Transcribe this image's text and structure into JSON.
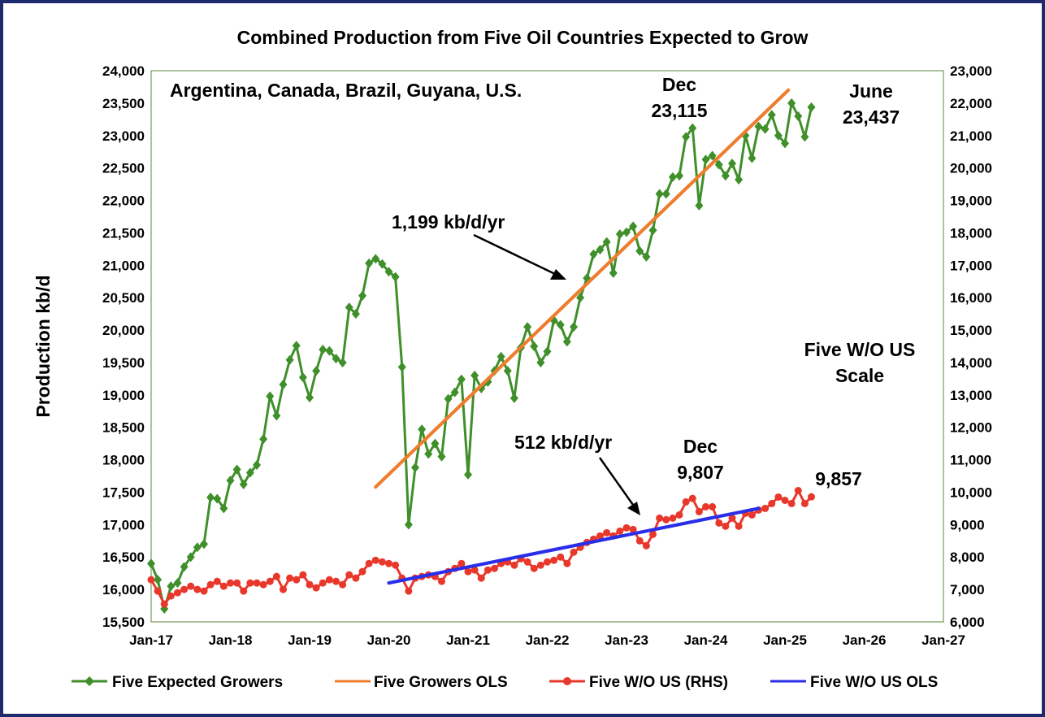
{
  "chart_data": {
    "type": "line",
    "title": "Combined Production from Five Oil Countries Expected to Grow",
    "ylabel": "Production kb/d",
    "ylim": [
      15500,
      24000
    ],
    "y2lim": [
      6000,
      23000
    ],
    "yticks": [
      "24,000",
      "23,500",
      "23,000",
      "22,500",
      "22,000",
      "21,500",
      "21,000",
      "20,500",
      "20,000",
      "19,500",
      "19,000",
      "18,500",
      "18,000",
      "17,500",
      "17,000",
      "16,500",
      "16,000",
      "15,500"
    ],
    "y2ticks": [
      "23,000",
      "22,000",
      "21,000",
      "20,000",
      "19,000",
      "18,000",
      "17,000",
      "16,000",
      "15,000",
      "14,000",
      "13,000",
      "12,000",
      "11,000",
      "10,000",
      "9,000",
      "8,000",
      "7,000",
      "6,000"
    ],
    "xticks": [
      "Jan-17",
      "Jan-18",
      "Jan-19",
      "Jan-20",
      "Jan-21",
      "Jan-22",
      "Jan-23",
      "Jan-24",
      "Jan-25",
      "Jan-26",
      "Jan-27"
    ],
    "x_start_month_index": 0,
    "x_end_month_index": 120,
    "annotations": {
      "countries": "Argentina, Canada, Brazil, Guyana, U.S.",
      "dec_top_label": "Dec",
      "dec_top_value": "23,115",
      "june_label": "June",
      "june_value": "23,437",
      "ols_rate_growers": "1,199 kb/d/yr",
      "rhs_scale_line1": "Five W/O US",
      "rhs_scale_line2": "Scale",
      "ols_rate_wo_us": "512 kb/d/yr",
      "dec_bottom_label": "Dec",
      "dec_bottom_value": "9,807",
      "last_wo_us_value": "9,857"
    },
    "series": [
      {
        "name": "Five Expected Growers",
        "axis": "left",
        "color": "#3f8f2a",
        "marker": "diamond",
        "values": [
          16400,
          16150,
          15700,
          16050,
          16100,
          16350,
          16500,
          16650,
          16700,
          17420,
          17400,
          17250,
          17680,
          17850,
          17620,
          17800,
          17920,
          18320,
          18980,
          18680,
          19160,
          19540,
          19760,
          19270,
          18960,
          19370,
          19700,
          19680,
          19560,
          19500,
          20350,
          20250,
          20530,
          21030,
          21100,
          21020,
          20900,
          20820,
          19430,
          17000,
          17880,
          18470,
          18090,
          18250,
          18050,
          18940,
          19040,
          19240,
          17770,
          19300,
          19100,
          19200,
          19370,
          19590,
          19370,
          18950,
          19730,
          20050,
          19750,
          19500,
          19670,
          20150,
          20080,
          19820,
          20050,
          20500,
          20800,
          21170,
          21240,
          21360,
          20880,
          21480,
          21510,
          21600,
          21220,
          21130,
          21540,
          22100,
          22100,
          22360,
          22380,
          22980,
          23115,
          21920,
          22630,
          22690,
          22550,
          22380,
          22570,
          22320,
          23000,
          22650,
          23140,
          23100,
          23320,
          23000,
          22880,
          23500,
          23300,
          22980,
          23437
        ]
      },
      {
        "name": "Five W/O US (RHS)",
        "axis": "right",
        "color": "#e8382b",
        "marker": "circle",
        "values": [
          7300,
          6950,
          6550,
          6800,
          6900,
          7000,
          7100,
          7000,
          6950,
          7150,
          7250,
          7100,
          7200,
          7200,
          6950,
          7200,
          7200,
          7150,
          7250,
          7400,
          7000,
          7350,
          7300,
          7450,
          7150,
          7050,
          7200,
          7300,
          7250,
          7150,
          7450,
          7350,
          7550,
          7800,
          7900,
          7850,
          7800,
          7750,
          7350,
          6950,
          7350,
          7400,
          7450,
          7400,
          7250,
          7550,
          7650,
          7800,
          7550,
          7600,
          7350,
          7600,
          7650,
          7800,
          7850,
          7750,
          7950,
          7850,
          7650,
          7750,
          7850,
          7900,
          8000,
          7800,
          8150,
          8300,
          8450,
          8550,
          8650,
          8750,
          8650,
          8800,
          8900,
          8850,
          8500,
          8350,
          8700,
          9200,
          9150,
          9200,
          9300,
          9700,
          9807,
          9400,
          9550,
          9550,
          9050,
          8950,
          9200,
          8950,
          9350,
          9300,
          9450,
          9500,
          9650,
          9850,
          9750,
          9650,
          10050,
          9650,
          9857
        ]
      },
      {
        "name": "Five Growers OLS",
        "axis": "left",
        "color": "#ee7d2e",
        "x_months": [
          34,
          96.5
        ],
        "values": [
          17580,
          23700
        ]
      },
      {
        "name": "Five W/O US OLS",
        "axis": "right",
        "color": "#2a2ee8",
        "x_months": [
          36,
          92
        ],
        "values": [
          7200,
          9500
        ]
      }
    ],
    "legend": {
      "placement": "bottom",
      "entries": [
        "Five Expected Growers",
        "Five Growers OLS",
        "Five W/O US (RHS)",
        "Five W/O US OLS"
      ]
    }
  }
}
